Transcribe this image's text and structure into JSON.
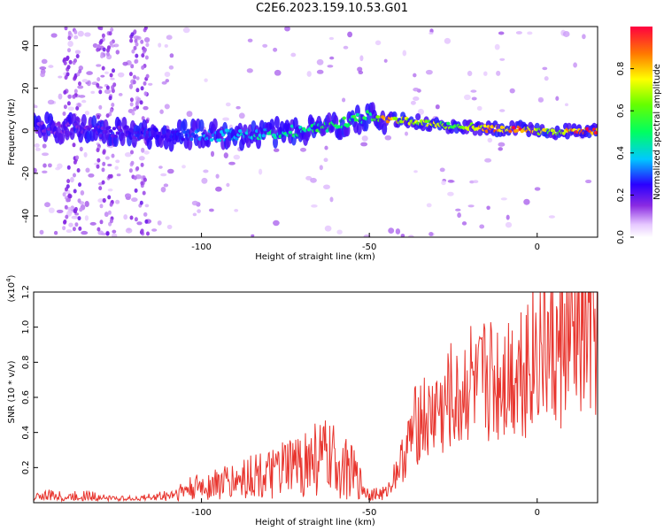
{
  "title": "C2E6.2023.159.10.53.G01",
  "chart_data": [
    {
      "type": "heatmap",
      "xlabel": "Height of straight line (km)",
      "ylabel": "Frequency (Hz)",
      "xlim": [
        -150,
        18
      ],
      "ylim": [
        -50,
        49
      ],
      "x_ticks": [
        -100,
        -50,
        0
      ],
      "y_ticks": [
        -40,
        -20,
        0,
        20,
        40
      ],
      "colorbar": {
        "label": "Normalized spectral amplitude",
        "ticks": [
          0.0,
          0.2,
          0.4,
          0.6,
          0.8
        ],
        "range": [
          0,
          1
        ]
      },
      "ridge": {
        "x": [
          -150,
          -140,
          -130,
          -120,
          -110,
          -100,
          -90,
          -80,
          -70,
          -60,
          -55,
          -50,
          -45,
          -40,
          -35,
          -30,
          -25,
          -20,
          -15,
          -10,
          -5,
          0,
          5,
          10,
          15,
          18
        ],
        "frequency": [
          2,
          1,
          0,
          -1,
          -2,
          -2,
          -2,
          -1,
          0,
          2,
          5,
          7,
          5,
          5,
          4,
          3,
          2,
          2,
          1,
          1,
          1,
          0,
          -1,
          0,
          0,
          0
        ],
        "amplitude": [
          0.15,
          0.18,
          0.2,
          0.22,
          0.25,
          0.35,
          0.4,
          0.45,
          0.5,
          0.55,
          0.55,
          0.5,
          0.85,
          0.75,
          0.7,
          0.7,
          0.6,
          0.7,
          0.8,
          0.9,
          0.95,
          0.8,
          0.7,
          0.85,
          0.95,
          0.9
        ]
      }
    },
    {
      "type": "line",
      "xlabel": "Height of straight line (km)",
      "ylabel": "SNR (10 * v/v)",
      "y_multiplier": "(x10",
      "y_exponent": "4",
      "xlim": [
        -150,
        18
      ],
      "ylim": [
        0,
        1.2
      ],
      "x_ticks": [
        -100,
        -50,
        0
      ],
      "y_ticks": [
        0.2,
        0.4,
        0.6,
        0.8,
        1.0,
        1.2
      ],
      "series": [
        {
          "color": "#e8352e",
          "x": [
            -150,
            -145,
            -140,
            -135,
            -130,
            -125,
            -120,
            -115,
            -110,
            -105,
            -100,
            -95,
            -90,
            -85,
            -80,
            -75,
            -70,
            -65,
            -60,
            -55,
            -50,
            -48,
            -45,
            -42,
            -40,
            -37,
            -35,
            -32,
            -30,
            -28,
            -26,
            -24,
            -22,
            -20,
            -18,
            -15,
            -12,
            -10,
            -8,
            -6,
            -4,
            -2,
            0,
            2,
            4,
            6,
            8,
            10,
            12,
            14,
            16,
            18
          ],
          "y": [
            0.03,
            0.04,
            0.03,
            0.04,
            0.03,
            0.02,
            0.02,
            0.03,
            0.04,
            0.07,
            0.09,
            0.11,
            0.12,
            0.16,
            0.15,
            0.19,
            0.22,
            0.26,
            0.23,
            0.17,
            0.04,
            0.05,
            0.05,
            0.18,
            0.25,
            0.4,
            0.5,
            0.45,
            0.55,
            0.5,
            0.6,
            0.55,
            0.62,
            0.7,
            0.6,
            0.72,
            0.68,
            0.75,
            0.72,
            0.78,
            0.8,
            0.84,
            0.88,
            0.9,
            0.86,
            0.82,
            0.92,
            0.88,
            0.95,
            0.92,
            0.98,
            0.95
          ]
        }
      ]
    }
  ]
}
